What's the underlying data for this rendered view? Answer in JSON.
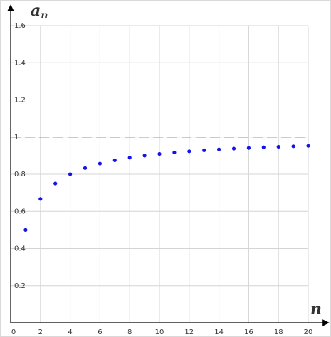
{
  "chart_data": {
    "type": "scatter",
    "title": "",
    "xlabel": "n",
    "ylabel": {
      "main": "a",
      "sub": "n"
    },
    "xlim": [
      0,
      20
    ],
    "ylim": [
      0,
      1.6
    ],
    "x_ticks": [
      "0",
      "2",
      "4",
      "6",
      "8",
      "10",
      "12",
      "14",
      "16",
      "18",
      "20"
    ],
    "y_ticks": [
      "0.2",
      "0.4",
      "0.6",
      "0.8",
      "1",
      "1.2",
      "1.4",
      "1.6"
    ],
    "grid": true,
    "reference_line": {
      "y": 1,
      "style": "dashed",
      "color": "#e05050"
    },
    "point_color": "#1414e6",
    "series": [
      {
        "x": [
          1,
          2,
          3,
          4,
          5,
          6,
          7,
          8,
          9,
          10,
          11,
          12,
          13,
          14,
          15,
          16,
          17,
          18,
          19,
          20
        ],
        "y": [
          0.5,
          0.6667,
          0.75,
          0.8,
          0.8333,
          0.8571,
          0.875,
          0.8889,
          0.9,
          0.9091,
          0.9167,
          0.9231,
          0.9286,
          0.9333,
          0.9375,
          0.9412,
          0.9444,
          0.9474,
          0.95,
          0.9524
        ]
      }
    ]
  }
}
